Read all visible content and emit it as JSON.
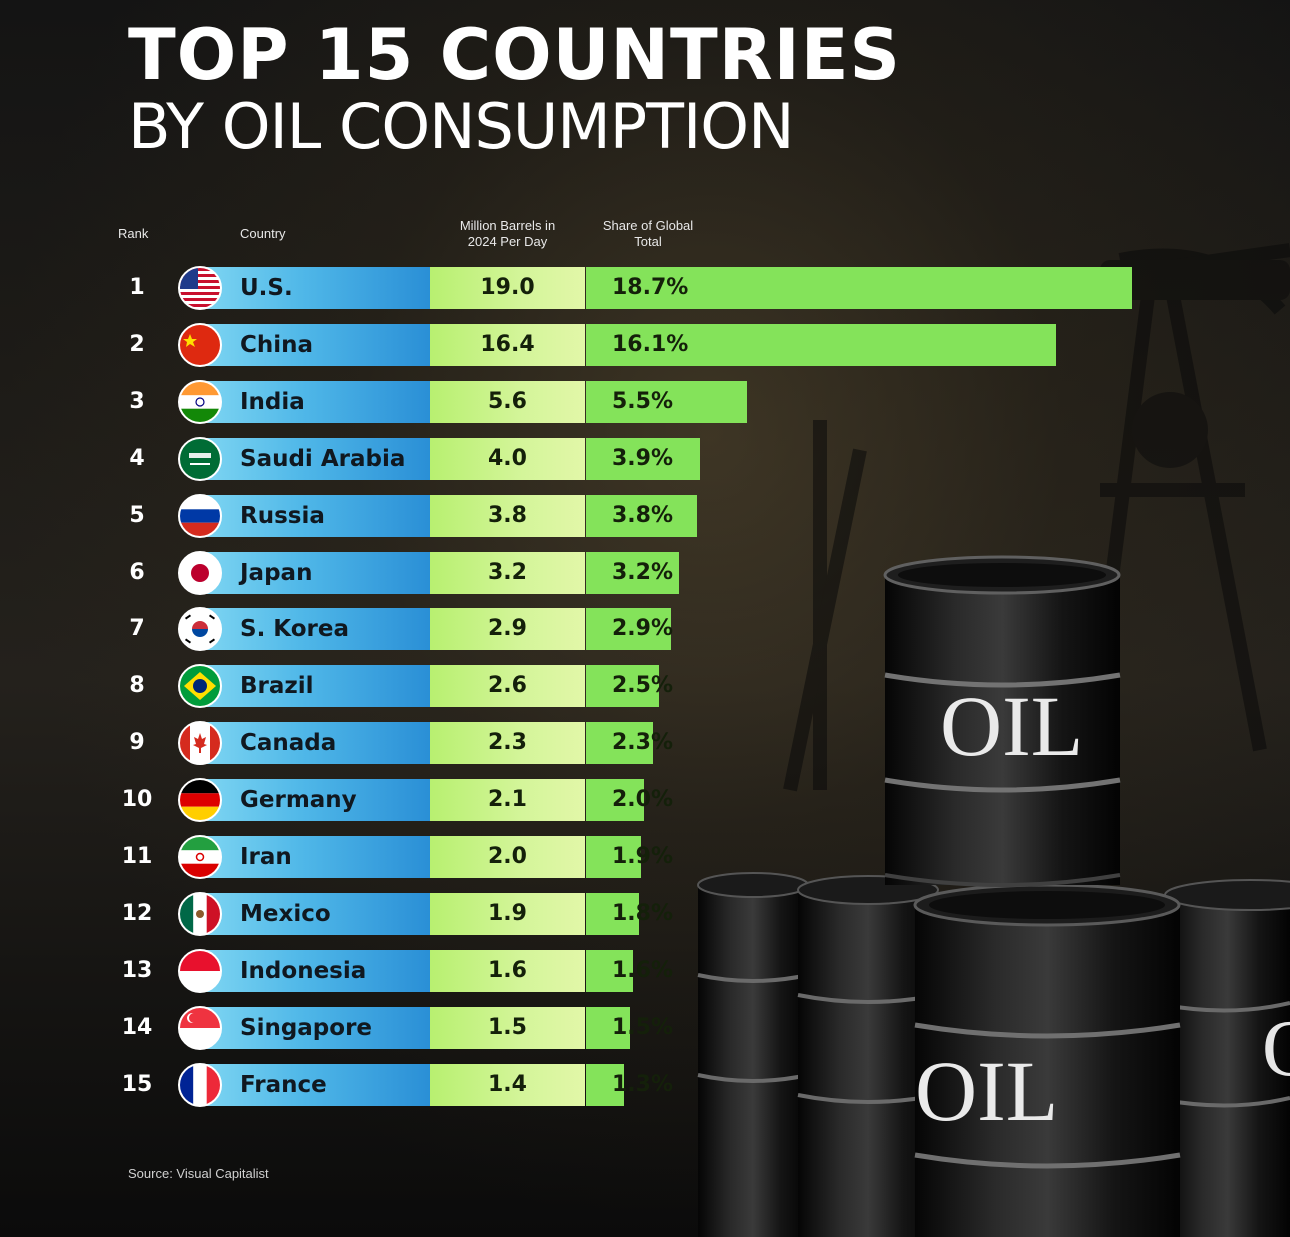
{
  "title": "TOP 15 COUNTRIES",
  "subtitle": "BY OIL CONSUMPTION",
  "headers": {
    "rank": "Rank",
    "country": "Country",
    "barrels_line1": "Million Barrels in",
    "barrels_line2": "2024 Per Day",
    "share_line1": "Share of Global",
    "share_line2": "Total"
  },
  "source": "Source: Visual Capitalist",
  "barrel_label": "OIL",
  "colors": {
    "country_bar": "#2a8fd6",
    "value_cell": "#d4f59a",
    "share_bar": "#84e35a"
  },
  "chart_data": {
    "type": "table",
    "title": "TOP 15 COUNTRIES",
    "subtitle": "BY OIL CONSUMPTION",
    "columns": [
      "Rank",
      "Country",
      "Million Barrels in 2024 Per Day",
      "Share of Global Total"
    ],
    "rows": [
      {
        "rank": "1",
        "country": "U.S.",
        "flag": "us-flag-icon",
        "barrels": "19.0",
        "share": "18.7%"
      },
      {
        "rank": "2",
        "country": "China",
        "flag": "china-flag-icon",
        "barrels": "16.4",
        "share": "16.1%"
      },
      {
        "rank": "3",
        "country": "India",
        "flag": "india-flag-icon",
        "barrels": "5.6",
        "share": "5.5%"
      },
      {
        "rank": "4",
        "country": "Saudi Arabia",
        "flag": "saudi-arabia-flag-icon",
        "barrels": "4.0",
        "share": "3.9%"
      },
      {
        "rank": "5",
        "country": "Russia",
        "flag": "russia-flag-icon",
        "barrels": "3.8",
        "share": "3.8%"
      },
      {
        "rank": "6",
        "country": "Japan",
        "flag": "japan-flag-icon",
        "barrels": "3.2",
        "share": "3.2%"
      },
      {
        "rank": "7",
        "country": "S. Korea",
        "flag": "south-korea-flag-icon",
        "barrels": "2.9",
        "share": "2.9%"
      },
      {
        "rank": "8",
        "country": "Brazil",
        "flag": "brazil-flag-icon",
        "barrels": "2.6",
        "share": "2.5%"
      },
      {
        "rank": "9",
        "country": "Canada",
        "flag": "canada-flag-icon",
        "barrels": "2.3",
        "share": "2.3%"
      },
      {
        "rank": "10",
        "country": "Germany",
        "flag": "germany-flag-icon",
        "barrels": "2.1",
        "share": "2.0%"
      },
      {
        "rank": "11",
        "country": "Iran",
        "flag": "iran-flag-icon",
        "barrels": "2.0",
        "share": "1.9%"
      },
      {
        "rank": "12",
        "country": "Mexico",
        "flag": "mexico-flag-icon",
        "barrels": "1.9",
        "share": "1.8%"
      },
      {
        "rank": "13",
        "country": "Indonesia",
        "flag": "indonesia-flag-icon",
        "barrels": "1.6",
        "share": "1.6%"
      },
      {
        "rank": "14",
        "country": "Singapore",
        "flag": "singapore-flag-icon",
        "barrels": "1.5",
        "share": "1.5%"
      },
      {
        "rank": "15",
        "country": "France",
        "flag": "france-flag-icon",
        "barrels": "1.4",
        "share": "1.3%"
      }
    ],
    "share_values": [
      18.7,
      16.1,
      5.5,
      3.9,
      3.8,
      3.2,
      2.9,
      2.5,
      2.3,
      2.0,
      1.9,
      1.8,
      1.6,
      1.5,
      1.3
    ],
    "share_bar_domain": [
      0,
      18.7
    ]
  }
}
